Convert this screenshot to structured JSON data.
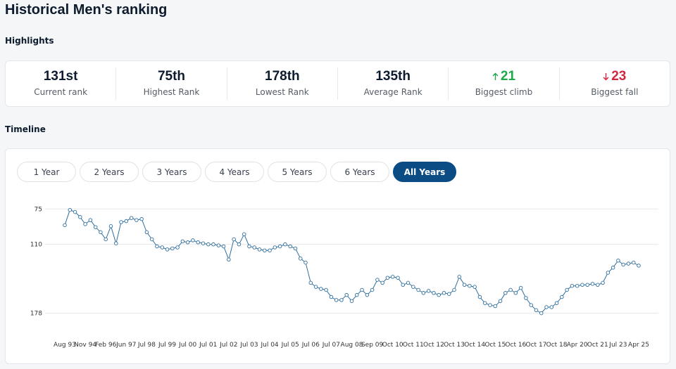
{
  "header": {
    "title": "Historical Men's ranking"
  },
  "highlights": {
    "title": "Highlights",
    "items": [
      {
        "value": "131st",
        "label": "Current rank"
      },
      {
        "value": "75th",
        "label": "Highest Rank"
      },
      {
        "value": "178th",
        "label": "Lowest Rank"
      },
      {
        "value": "135th",
        "label": "Average Rank"
      },
      {
        "value": "21",
        "label": "Biggest climb"
      },
      {
        "value": "23",
        "label": "Biggest fall"
      }
    ]
  },
  "timeline": {
    "title": "Timeline",
    "buttons": [
      "1 Year",
      "2 Years",
      "3 Years",
      "4 Years",
      "5 Years",
      "6 Years",
      "All Years"
    ]
  },
  "chart_data": {
    "type": "line",
    "color": "#2f6f9f",
    "grid": true,
    "categories": [
      "Aug 93",
      null,
      null,
      null,
      "Nov 94",
      null,
      null,
      null,
      "Feb 96",
      null,
      null,
      null,
      "Jun 97",
      null,
      null,
      null,
      "Jul 98",
      null,
      null,
      null,
      "Jul 99",
      null,
      null,
      null,
      "Jul 00",
      null,
      null,
      null,
      "Jul 01",
      null,
      null,
      null,
      "Jul 02",
      null,
      null,
      null,
      "Jul 03",
      null,
      null,
      null,
      "Jul 04",
      null,
      null,
      null,
      "Jul 05",
      null,
      null,
      null,
      "Jul 06",
      null,
      null,
      null,
      "Jul 07",
      null,
      null,
      null,
      "Aug 08",
      null,
      null,
      null,
      "Sep 09",
      null,
      null,
      null,
      "Oct 10",
      null,
      null,
      null,
      "Oct 11",
      null,
      null,
      null,
      "Oct 12",
      null,
      null,
      null,
      "Oct 13",
      null,
      null,
      null,
      "Oct 14",
      null,
      null,
      null,
      "Oct 15",
      null,
      null,
      null,
      "Oct 16",
      null,
      null,
      null,
      "Oct 17",
      null,
      null,
      null,
      "Oct 18",
      null,
      null,
      null,
      "Apr 20",
      null,
      null,
      null,
      "Oct 21",
      null,
      null,
      null,
      "Jul 23",
      null,
      null,
      null,
      "Apr 25"
    ],
    "values": [
      91,
      76,
      78,
      83,
      90,
      86,
      93,
      98,
      105,
      92,
      109,
      88,
      87,
      84,
      86,
      85,
      98,
      105,
      112,
      113,
      115,
      114,
      113,
      107,
      108,
      106,
      108,
      109,
      110,
      110,
      111,
      112,
      125,
      105,
      110,
      100,
      112,
      113,
      115,
      116,
      116,
      113,
      112,
      110,
      112,
      114,
      124,
      128,
      148,
      152,
      154,
      155,
      162,
      165,
      165,
      160,
      166,
      160,
      155,
      160,
      155,
      145,
      148,
      143,
      142,
      143,
      150,
      148,
      152,
      155,
      158,
      156,
      158,
      160,
      158,
      159,
      155,
      142,
      150,
      151,
      152,
      162,
      168,
      170,
      171,
      166,
      158,
      155,
      158,
      153,
      163,
      170,
      175,
      178,
      172,
      172,
      168,
      162,
      155,
      151,
      151,
      150,
      150,
      149,
      150,
      148,
      138,
      133,
      126,
      130,
      129,
      128,
      131
    ],
    "ylim": [
      188,
      63
    ],
    "yticks": [
      75,
      110,
      178
    ]
  }
}
